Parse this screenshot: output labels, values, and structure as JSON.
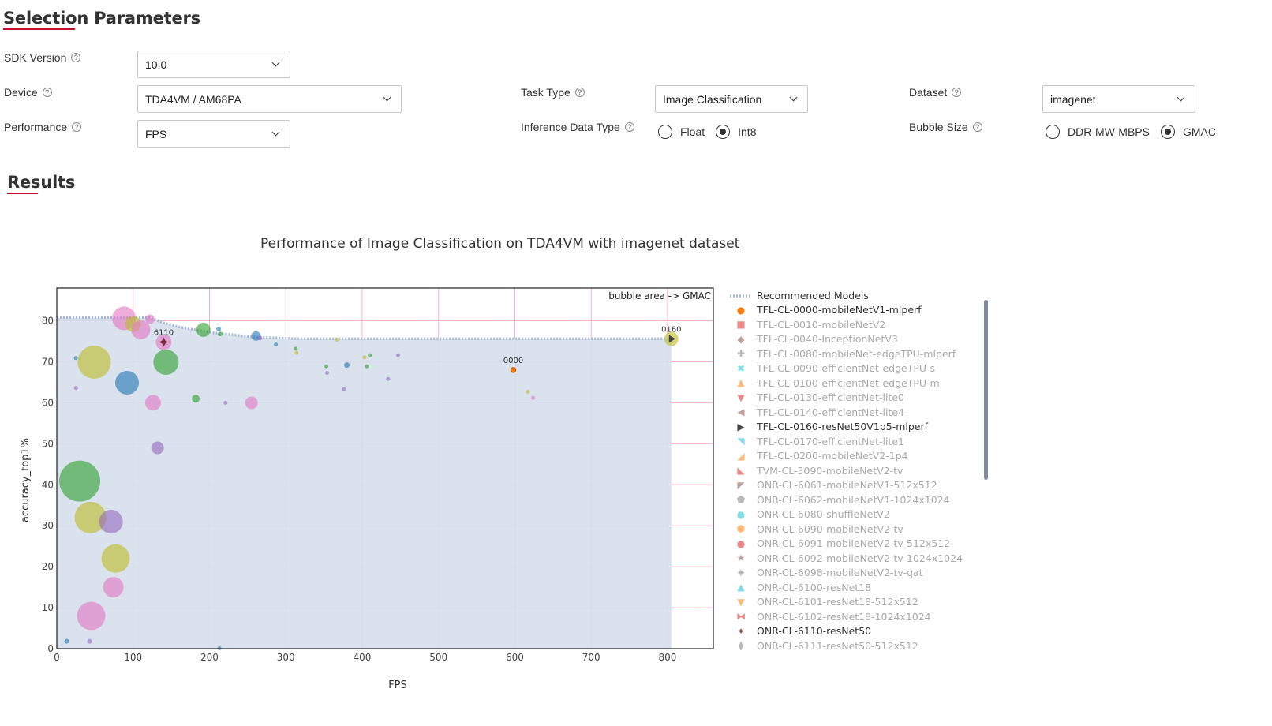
{
  "selection": {
    "title": "Selection Parameters",
    "sdk_version": {
      "label": "SDK Version",
      "value": "10.0"
    },
    "device": {
      "label": "Device",
      "value": "TDA4VM / AM68PA"
    },
    "performance": {
      "label": "Performance",
      "value": "FPS"
    },
    "task_type": {
      "label": "Task Type",
      "value": "Image Classification"
    },
    "inference_data_type": {
      "label": "Inference Data Type",
      "options": [
        "Float",
        "Int8"
      ],
      "selected": "Int8"
    },
    "dataset": {
      "label": "Dataset",
      "value": "imagenet"
    },
    "bubble_size": {
      "label": "Bubble Size",
      "options": [
        "DDR-MW-MBPS",
        "GMAC"
      ],
      "selected": "GMAC"
    }
  },
  "results": {
    "title": "Results"
  },
  "colors": {
    "accent_red": "#c8102e",
    "frontier_fill": "#d6dfec",
    "frontier_line": "#a9bad6",
    "grid": "#f4b6c2"
  },
  "chart_data": {
    "type": "scatter",
    "title": "Performance of Image Classification on TDA4VM with imagenet dataset",
    "xlabel": "FPS",
    "ylabel": "accuracy_top1%",
    "xlim": [
      0,
      860
    ],
    "ylim": [
      0,
      88
    ],
    "xticks": [
      0,
      100,
      200,
      300,
      400,
      500,
      600,
      700,
      800
    ],
    "yticks": [
      0,
      10,
      20,
      30,
      40,
      50,
      60,
      70,
      80
    ],
    "annotation": "bubble area -> GMAC",
    "grid": true,
    "frontier": {
      "name": "Recommended Models",
      "points": [
        [
          0,
          80.8
        ],
        [
          60,
          80.8
        ],
        [
          120,
          80.8
        ],
        [
          140,
          79.5
        ],
        [
          160,
          78.5
        ],
        [
          200,
          77.2
        ],
        [
          260,
          76.0
        ],
        [
          320,
          75.6
        ],
        [
          500,
          75.6
        ],
        [
          700,
          75.6
        ],
        [
          805,
          75.6
        ]
      ]
    },
    "labels": [
      {
        "text": "6110",
        "x": 140,
        "y": 74.8
      },
      {
        "text": "0000",
        "x": 598,
        "y": 68.0
      },
      {
        "text": "0160",
        "x": 805,
        "y": 75.6
      }
    ],
    "bubbles": [
      {
        "x": 88,
        "y": 80.6,
        "r": 15,
        "color": "#e377c2"
      },
      {
        "x": 100,
        "y": 79.2,
        "r": 10,
        "color": "#bcbd22"
      },
      {
        "x": 110,
        "y": 77.8,
        "r": 12,
        "color": "#e377c2"
      },
      {
        "x": 122,
        "y": 80.4,
        "r": 6,
        "color": "#e377c2"
      },
      {
        "x": 140,
        "y": 74.8,
        "r": 10,
        "color": "#e377c2"
      },
      {
        "x": 192,
        "y": 77.8,
        "r": 9,
        "color": "#2ca02c"
      },
      {
        "x": 212,
        "y": 78.0,
        "r": 3,
        "color": "#1f77b4"
      },
      {
        "x": 214,
        "y": 76.8,
        "r": 3,
        "color": "#2ca02c"
      },
      {
        "x": 261,
        "y": 76.3,
        "r": 6,
        "color": "#1f77b4"
      },
      {
        "x": 266,
        "y": 75.8,
        "r": 3,
        "color": "#9467bd"
      },
      {
        "x": 287,
        "y": 74.2,
        "r": 2.5,
        "color": "#1f77b4"
      },
      {
        "x": 313,
        "y": 73.2,
        "r": 2.5,
        "color": "#2ca02c"
      },
      {
        "x": 314,
        "y": 72.2,
        "r": 2.5,
        "color": "#bcbd22"
      },
      {
        "x": 367,
        "y": 75.4,
        "r": 2.5,
        "color": "#bcbd22"
      },
      {
        "x": 25,
        "y": 70.9,
        "r": 2.5,
        "color": "#1f77b4"
      },
      {
        "x": 25,
        "y": 63.6,
        "r": 2.5,
        "color": "#9467bd"
      },
      {
        "x": 49,
        "y": 69.9,
        "r": 21,
        "color": "#bcbd22"
      },
      {
        "x": 143,
        "y": 69.9,
        "r": 16,
        "color": "#2ca02c"
      },
      {
        "x": 92,
        "y": 64.9,
        "r": 15,
        "color": "#1f77b4"
      },
      {
        "x": 126,
        "y": 60.0,
        "r": 10,
        "color": "#e377c2"
      },
      {
        "x": 182,
        "y": 61.0,
        "r": 5,
        "color": "#2ca02c"
      },
      {
        "x": 221,
        "y": 60.0,
        "r": 2.5,
        "color": "#9467bd"
      },
      {
        "x": 255,
        "y": 60.0,
        "r": 8,
        "color": "#e377c2"
      },
      {
        "x": 132,
        "y": 49.0,
        "r": 8,
        "color": "#9467bd"
      },
      {
        "x": 30,
        "y": 40.9,
        "r": 26,
        "color": "#2ca02c"
      },
      {
        "x": 44,
        "y": 32.0,
        "r": 20,
        "color": "#bcbd22"
      },
      {
        "x": 71,
        "y": 31.0,
        "r": 15,
        "color": "#9467bd"
      },
      {
        "x": 77,
        "y": 22.0,
        "r": 18,
        "color": "#bcbd22"
      },
      {
        "x": 74,
        "y": 15.0,
        "r": 13,
        "color": "#e377c2"
      },
      {
        "x": 45,
        "y": 8.0,
        "r": 18,
        "color": "#e377c2"
      },
      {
        "x": 13,
        "y": 1.8,
        "r": 3,
        "color": "#1f77b4"
      },
      {
        "x": 43,
        "y": 1.8,
        "r": 3,
        "color": "#9467bd"
      },
      {
        "x": 213,
        "y": 0.1,
        "r": 2.5,
        "color": "#1f77b4"
      },
      {
        "x": 353,
        "y": 68.9,
        "r": 2.5,
        "color": "#2ca02c"
      },
      {
        "x": 354,
        "y": 67.3,
        "r": 2.5,
        "color": "#9467bd"
      },
      {
        "x": 380,
        "y": 69.2,
        "r": 3.5,
        "color": "#1f77b4"
      },
      {
        "x": 376,
        "y": 63.3,
        "r": 2.5,
        "color": "#9467bd"
      },
      {
        "x": 403,
        "y": 71.1,
        "r": 2.5,
        "color": "#bcbd22"
      },
      {
        "x": 410,
        "y": 71.6,
        "r": 2.5,
        "color": "#2ca02c"
      },
      {
        "x": 406,
        "y": 68.9,
        "r": 2.5,
        "color": "#2ca02c"
      },
      {
        "x": 447,
        "y": 71.6,
        "r": 2.5,
        "color": "#9467bd"
      },
      {
        "x": 434,
        "y": 65.8,
        "r": 2.5,
        "color": "#9467bd"
      },
      {
        "x": 598,
        "y": 68.0,
        "r": 4,
        "color": "#ff7f0e"
      },
      {
        "x": 617,
        "y": 62.7,
        "r": 2.5,
        "color": "#bcbd22"
      },
      {
        "x": 624,
        "y": 61.2,
        "r": 2.5,
        "color": "#e377c2"
      },
      {
        "x": 805,
        "y": 75.6,
        "r": 9,
        "color": "#bcbd22"
      }
    ],
    "legend": {
      "placement": "right",
      "items": [
        {
          "label": "Recommended Models",
          "marker": "line",
          "color": "#a9bad6",
          "active": true
        },
        {
          "label": "TFL-CL-0000-mobileNetV1-mlperf",
          "marker": "●",
          "color": "#ff7f0e",
          "active": true
        },
        {
          "label": "TFL-CL-0010-mobileNetV2",
          "marker": "■",
          "color": "#d62728",
          "active": false
        },
        {
          "label": "TFL-CL-0040-InceptionNetV3",
          "marker": "◆",
          "color": "#8c564b",
          "active": false
        },
        {
          "label": "TFL-CL-0080-mobileNet-edgeTPU-mlperf",
          "marker": "✚",
          "color": "#7f7f7f",
          "active": false
        },
        {
          "label": "TFL-CL-0090-efficientNet-edgeTPU-s",
          "marker": "✖",
          "color": "#17becf",
          "active": false
        },
        {
          "label": "TFL-CL-0100-efficientNet-edgeTPU-m",
          "marker": "▲",
          "color": "#ff7f0e",
          "active": false
        },
        {
          "label": "TFL-CL-0130-efficientNet-lite0",
          "marker": "▼",
          "color": "#d62728",
          "active": false
        },
        {
          "label": "TFL-CL-0140-efficientNet-lite4",
          "marker": "◀",
          "color": "#8c564b",
          "active": false
        },
        {
          "label": "TFL-CL-0160-resNet50V1p5-mlperf",
          "marker": "▶",
          "color": "#444444",
          "active": true
        },
        {
          "label": "TFL-CL-0170-efficientNet-lite1",
          "marker": "◥",
          "color": "#17becf",
          "active": false
        },
        {
          "label": "TFL-CL-0200-mobileNetV2-1p4",
          "marker": "◢",
          "color": "#ff7f0e",
          "active": false
        },
        {
          "label": "TVM-CL-3090-mobileNetV2-tv",
          "marker": "◣",
          "color": "#d62728",
          "active": false
        },
        {
          "label": "ONR-CL-6061-mobileNetV1-512x512",
          "marker": "◤",
          "color": "#8c564b",
          "active": false
        },
        {
          "label": "ONR-CL-6062-mobileNetV1-1024x1024",
          "marker": "⬟",
          "color": "#7f7f7f",
          "active": false
        },
        {
          "label": "ONR-CL-6080-shuffleNetV2",
          "marker": "●",
          "color": "#17becf",
          "active": false
        },
        {
          "label": "ONR-CL-6090-mobileNetV2-tv",
          "marker": "⬢",
          "color": "#ff7f0e",
          "active": false
        },
        {
          "label": "ONR-CL-6091-mobileNetV2-tv-512x512",
          "marker": "●",
          "color": "#d62728",
          "active": false
        },
        {
          "label": "ONR-CL-6092-mobileNetV2-tv-1024x1024",
          "marker": "★",
          "color": "#8c564b",
          "active": false
        },
        {
          "label": "ONR-CL-6098-mobileNetV2-tv-qat",
          "marker": "✸",
          "color": "#7f7f7f",
          "active": false
        },
        {
          "label": "ONR-CL-6100-resNet18",
          "marker": "▲",
          "color": "#17becf",
          "active": false
        },
        {
          "label": "ONR-CL-6101-resNet18-512x512",
          "marker": "▼",
          "color": "#ff7f0e",
          "active": false
        },
        {
          "label": "ONR-CL-6102-resNet18-1024x1024",
          "marker": "⧓",
          "color": "#d62728",
          "active": false
        },
        {
          "label": "ONR-CL-6110-resNet50",
          "marker": "✦",
          "color": "#8c564b",
          "active": true
        },
        {
          "label": "ONR-CL-6111-resNet50-512x512",
          "marker": "⧫",
          "color": "#7f7f7f",
          "active": false
        }
      ]
    }
  }
}
